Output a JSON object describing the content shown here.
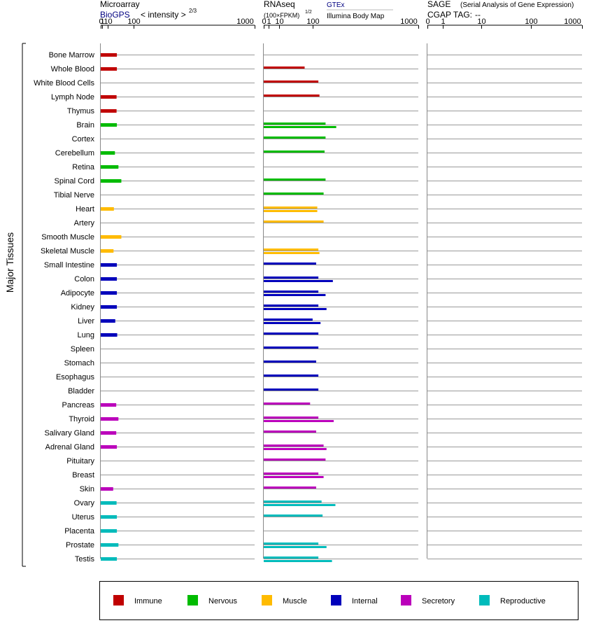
{
  "chart_data": {
    "type": "bar",
    "orientation": "horizontal",
    "group_label": "Major Tissues",
    "tissues": [
      "Bone Marrow",
      "Whole Blood",
      "White Blood Cells",
      "Lymph Node",
      "Thymus",
      "Brain",
      "Cortex",
      "Cerebellum",
      "Retina",
      "Spinal Cord",
      "Tibial Nerve",
      "Heart",
      "Artery",
      "Smooth Muscle",
      "Skeletal Muscle",
      "Small Intestine",
      "Colon",
      "Adipocyte",
      "Kidney",
      "Liver",
      "Lung",
      "Spleen",
      "Stomach",
      "Esophagus",
      "Bladder",
      "Pancreas",
      "Thyroid",
      "Salivary Gland",
      "Adrenal Gland",
      "Pituitary",
      "Breast",
      "Skin",
      "Ovary",
      "Uterus",
      "Placenta",
      "Prostate",
      "Testis"
    ],
    "tissue_categories": [
      "Immune",
      "Immune",
      "Immune",
      "Immune",
      "Immune",
      "Nervous",
      "Nervous",
      "Nervous",
      "Nervous",
      "Nervous",
      "Nervous",
      "Muscle",
      "Muscle",
      "Muscle",
      "Muscle",
      "Internal",
      "Internal",
      "Internal",
      "Internal",
      "Internal",
      "Internal",
      "Internal",
      "Internal",
      "Internal",
      "Internal",
      "Secretory",
      "Secretory",
      "Secretory",
      "Secretory",
      "Secretory",
      "Secretory",
      "Secretory",
      "Reproductive",
      "Reproductive",
      "Reproductive",
      "Reproductive",
      "Reproductive"
    ],
    "legend": [
      {
        "name": "Immune",
        "color": "#c00000"
      },
      {
        "name": "Nervous",
        "color": "#00bb00"
      },
      {
        "name": "Muscle",
        "color": "#ffbb00"
      },
      {
        "name": "Internal",
        "color": "#0000bb"
      },
      {
        "name": "Secretory",
        "color": "#bb00bb"
      },
      {
        "name": "Reproductive",
        "color": "#00bbbb"
      }
    ],
    "panels": [
      {
        "id": "microarray",
        "title": "Microarray",
        "source": "BioGPS",
        "unit_label": "< intensity >",
        "unit_exponent": "2/3",
        "scale": "power",
        "exponent": 0.6667,
        "ticks": [
          "0",
          "1",
          "10",
          "100",
          "1000"
        ],
        "xlim": [
          0,
          1000
        ],
        "values": [
          34,
          34,
          null,
          33,
          33,
          34,
          null,
          28,
          39,
          49,
          null,
          25,
          null,
          49,
          24,
          34,
          34,
          34,
          34,
          29,
          35,
          null,
          null,
          null,
          null,
          32,
          39,
          32,
          34,
          null,
          null,
          23,
          33,
          34,
          34,
          39,
          34
        ]
      },
      {
        "id": "rnaseq",
        "title": "RNAseq",
        "unit_label": "(100×FPKM)",
        "unit_exponent": "1/2",
        "scale": "sqrt",
        "exponent": 0.5,
        "ticks": [
          "0",
          "1",
          "10",
          "100",
          "1000"
        ],
        "xlim": [
          0,
          1000
        ],
        "series": [
          {
            "name": "GTEx",
            "values": [
              null,
              70,
              125,
              130,
              null,
              160,
              160,
              155,
              null,
              160,
              150,
              120,
              150,
              null,
              125,
              115,
              125,
              125,
              125,
              100,
              125,
              125,
              115,
              125,
              125,
              90,
              125,
              115,
              150,
              160,
              125,
              115,
              140,
              145,
              null,
              125,
              125
            ]
          },
          {
            "name": "Illumina Body Map",
            "values": [
              null,
              null,
              null,
              null,
              null,
              220,
              null,
              null,
              null,
              null,
              null,
              120,
              null,
              null,
              130,
              null,
              200,
              160,
              165,
              135,
              null,
              null,
              null,
              null,
              null,
              null,
              205,
              null,
              165,
              null,
              150,
              null,
              215,
              null,
              null,
              165,
              195
            ]
          }
        ]
      },
      {
        "id": "sage",
        "title": "SAGE",
        "subtitle": "(Serial Analysis of Gene Expression)",
        "tag_label": "CGAP TAG:",
        "tag_value": "--",
        "scale": "log",
        "ticks": [
          "0",
          "1",
          "10",
          "100",
          "1000"
        ],
        "xlim": [
          0,
          1000
        ],
        "values": []
      }
    ]
  }
}
